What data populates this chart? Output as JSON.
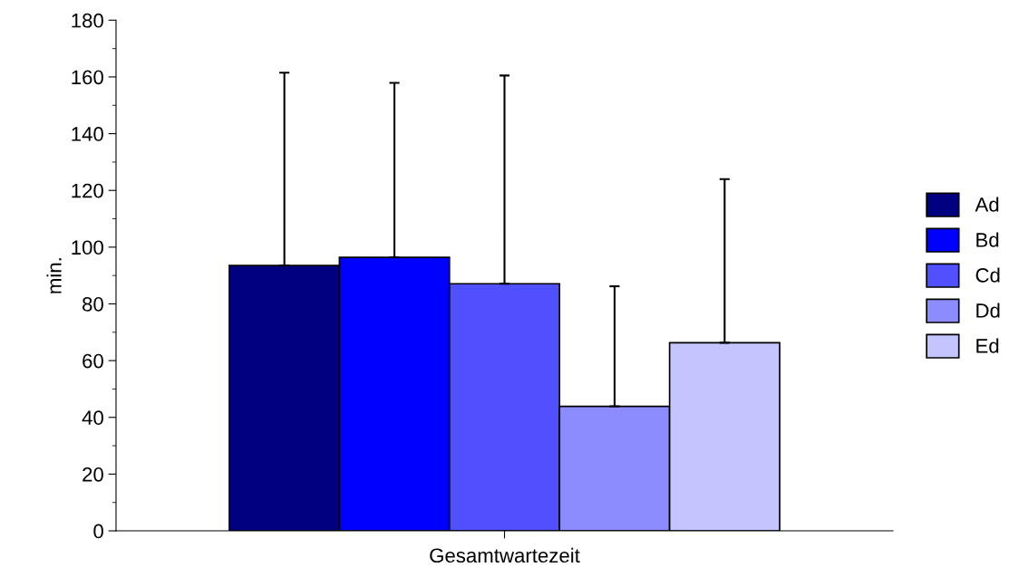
{
  "chart_data": {
    "type": "bar",
    "xlabel": "Gesamtwartezeit",
    "ylabel": "min.",
    "categories": [
      null
    ],
    "series": [
      {
        "name": "Ad",
        "color": "#000080",
        "values": [
          93.5
        ],
        "errors": [
          [
            93.5,
            161.5
          ]
        ]
      },
      {
        "name": "Bd",
        "color": "#0000ff",
        "values": [
          96.4
        ],
        "errors": [
          [
            96.4,
            157.9
          ]
        ]
      },
      {
        "name": "Cd",
        "color": "#5050ff",
        "values": [
          87.1
        ],
        "errors": [
          [
            87.1,
            160.5
          ]
        ]
      },
      {
        "name": "Dd",
        "color": "#8c8cff",
        "values": [
          43.9
        ],
        "errors": [
          [
            43.9,
            86.2
          ]
        ]
      },
      {
        "name": "Ed",
        "color": "#c4c4ff",
        "values": [
          66.3
        ],
        "errors": [
          [
            66.3,
            124.0
          ]
        ]
      }
    ],
    "ylim": [
      0,
      180
    ],
    "yticks": [
      0,
      20,
      40,
      60,
      80,
      100,
      120,
      140,
      160,
      180
    ],
    "grid": false,
    "legend": "right"
  }
}
